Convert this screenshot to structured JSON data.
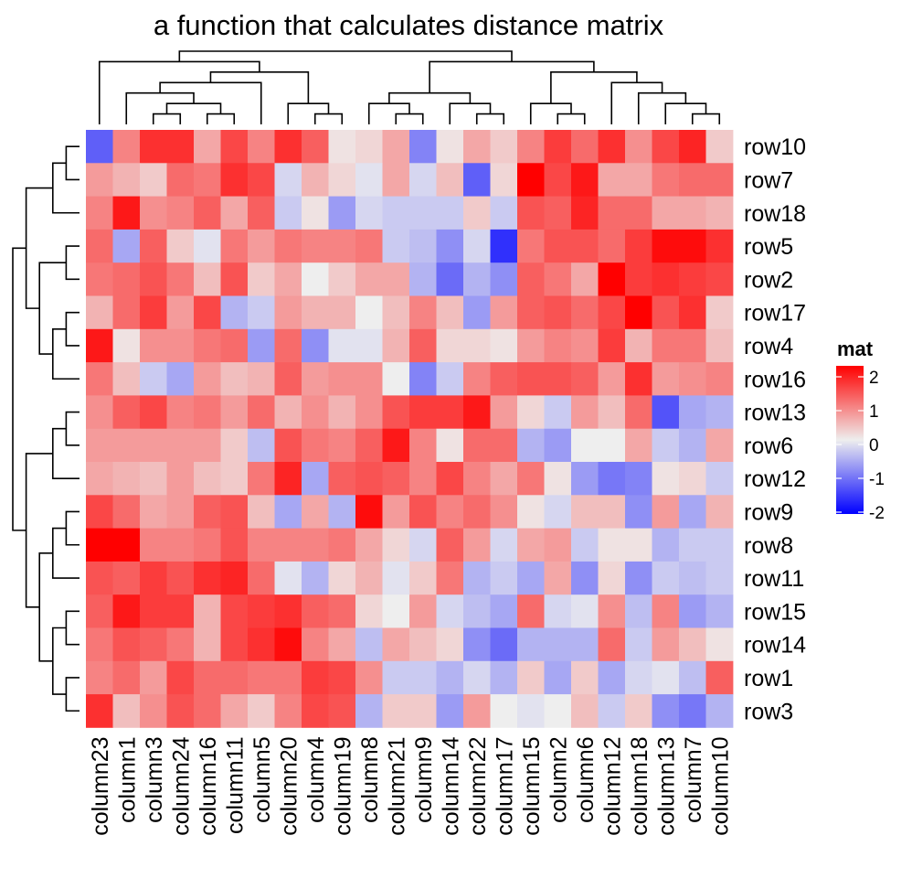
{
  "chart_data": {
    "type": "heatmap",
    "title": "a function that calculates distance matrix",
    "columns": [
      "column23",
      "column1",
      "column3",
      "column24",
      "column16",
      "column11",
      "column5",
      "column20",
      "column4",
      "column19",
      "column8",
      "column21",
      "column9",
      "column14",
      "column22",
      "column17",
      "column15",
      "column2",
      "column6",
      "column12",
      "column18",
      "column13",
      "column7",
      "column10"
    ],
    "rows": [
      "row10",
      "row7",
      "row18",
      "row5",
      "row2",
      "row17",
      "row4",
      "row16",
      "row13",
      "row6",
      "row12",
      "row9",
      "row8",
      "row11",
      "row15",
      "row14",
      "row1",
      "row3"
    ],
    "values": [
      [
        -1.2,
        0.9,
        1.6,
        1.6,
        0.6,
        1.4,
        0.9,
        1.6,
        1.2,
        0.1,
        0.2,
        0.6,
        -0.9,
        0.1,
        0.6,
        0.3,
        0.9,
        1.5,
        1.1,
        1.6,
        0.8,
        1.4,
        1.7,
        0.3
      ],
      [
        0.7,
        0.5,
        0.3,
        1.1,
        1.0,
        1.6,
        1.4,
        -0.2,
        0.5,
        0.2,
        -0.1,
        0.6,
        -0.2,
        0.4,
        -1.2,
        0.2,
        2.0,
        1.4,
        1.8,
        0.6,
        0.6,
        1.0,
        1.1,
        1.1
      ],
      [
        0.9,
        1.8,
        0.8,
        0.9,
        1.2,
        0.6,
        1.2,
        -0.3,
        0.1,
        -0.7,
        -0.2,
        -0.3,
        -0.3,
        -0.3,
        0.3,
        -0.3,
        1.3,
        1.2,
        1.7,
        1.1,
        1.1,
        0.6,
        0.6,
        0.5
      ],
      [
        1.1,
        -0.6,
        1.2,
        0.3,
        -0.1,
        1.0,
        0.7,
        1.0,
        0.9,
        0.9,
        1.0,
        -0.3,
        -0.4,
        -0.8,
        -0.2,
        -1.6,
        1.0,
        1.3,
        1.3,
        1.1,
        1.5,
        1.9,
        1.9,
        1.6
      ],
      [
        1.0,
        1.1,
        1.3,
        1.0,
        0.4,
        1.3,
        0.3,
        0.6,
        0.0,
        0.3,
        0.6,
        0.6,
        -0.5,
        -1.1,
        -0.5,
        -0.8,
        1.2,
        1.0,
        0.6,
        2.0,
        1.5,
        1.6,
        1.5,
        1.4
      ],
      [
        0.5,
        1.1,
        1.5,
        0.7,
        1.4,
        -0.5,
        -0.3,
        0.7,
        0.5,
        0.5,
        0.0,
        0.4,
        0.9,
        0.4,
        -0.7,
        0.7,
        1.2,
        1.3,
        1.1,
        1.4,
        2.1,
        1.3,
        1.6,
        0.3
      ],
      [
        1.8,
        0.1,
        0.8,
        0.8,
        1.0,
        1.1,
        -0.7,
        1.1,
        -0.8,
        -0.1,
        -0.1,
        0.5,
        1.2,
        0.2,
        0.2,
        0.1,
        0.7,
        0.9,
        0.8,
        1.5,
        0.5,
        1.0,
        1.0,
        0.4
      ],
      [
        1.0,
        0.4,
        -0.3,
        -0.6,
        0.7,
        0.4,
        0.5,
        1.2,
        0.7,
        0.8,
        0.8,
        0.0,
        -0.9,
        -0.3,
        0.9,
        1.2,
        1.3,
        1.3,
        1.2,
        0.7,
        1.6,
        0.7,
        0.8,
        0.9
      ],
      [
        0.8,
        1.2,
        1.4,
        0.9,
        1.0,
        0.7,
        1.1,
        0.5,
        0.8,
        0.5,
        0.8,
        1.3,
        1.5,
        1.5,
        1.8,
        0.7,
        0.2,
        -0.3,
        0.7,
        0.4,
        1.1,
        -1.3,
        -0.6,
        -0.5
      ],
      [
        0.7,
        0.7,
        0.7,
        0.7,
        0.7,
        0.3,
        -0.4,
        1.3,
        1.0,
        0.9,
        1.2,
        1.8,
        0.9,
        0.1,
        1.1,
        1.1,
        -0.5,
        -0.7,
        0.0,
        0.0,
        0.6,
        -0.3,
        -0.5,
        0.6
      ],
      [
        0.6,
        0.5,
        0.4,
        0.7,
        0.4,
        0.3,
        1.0,
        1.7,
        -0.6,
        1.2,
        1.3,
        1.2,
        0.9,
        1.4,
        0.9,
        0.6,
        1.0,
        0.1,
        -0.7,
        -1.0,
        -0.9,
        0.1,
        0.2,
        -0.3
      ],
      [
        1.4,
        1.1,
        0.6,
        0.7,
        1.2,
        1.3,
        0.4,
        -0.6,
        0.6,
        -0.5,
        1.9,
        0.7,
        1.3,
        0.9,
        1.1,
        0.8,
        0.1,
        -0.2,
        0.4,
        0.4,
        -0.8,
        0.7,
        -0.6,
        0.5
      ],
      [
        2.0,
        2.1,
        0.9,
        0.9,
        1.0,
        1.3,
        0.9,
        0.9,
        0.9,
        1.0,
        0.6,
        0.2,
        -0.2,
        1.2,
        0.7,
        -0.2,
        0.6,
        0.7,
        -0.3,
        0.1,
        0.1,
        -0.5,
        -0.3,
        -0.3
      ],
      [
        1.3,
        1.2,
        1.5,
        1.3,
        1.6,
        1.7,
        1.1,
        -0.1,
        -0.5,
        0.2,
        0.5,
        -0.1,
        0.3,
        1.0,
        -0.5,
        -0.3,
        -0.6,
        0.6,
        -0.8,
        0.2,
        -0.8,
        -0.3,
        -0.4,
        -0.3
      ],
      [
        1.2,
        1.8,
        1.5,
        1.5,
        0.5,
        1.4,
        1.5,
        1.6,
        1.2,
        1.1,
        0.2,
        0.0,
        0.7,
        -0.2,
        -0.4,
        -0.6,
        1.1,
        -0.2,
        -0.1,
        0.8,
        -0.4,
        0.9,
        -0.7,
        -0.5
      ],
      [
        1.0,
        1.3,
        1.2,
        1.0,
        0.5,
        1.4,
        1.6,
        1.9,
        0.9,
        0.6,
        -0.4,
        0.6,
        0.4,
        0.2,
        -0.8,
        -1.1,
        -0.5,
        -0.5,
        -0.5,
        1.1,
        -0.3,
        0.7,
        0.4,
        0.1
      ],
      [
        0.9,
        1.1,
        0.7,
        1.4,
        1.1,
        1.1,
        1.0,
        1.0,
        1.5,
        1.4,
        0.8,
        -0.3,
        -0.3,
        -0.5,
        -0.2,
        -0.5,
        0.3,
        -0.6,
        0.3,
        -0.6,
        -0.2,
        -0.1,
        -0.4,
        1.2
      ],
      [
        1.6,
        0.4,
        0.8,
        1.3,
        1.1,
        0.6,
        0.3,
        0.9,
        1.4,
        1.3,
        -0.5,
        0.3,
        0.3,
        -0.7,
        0.7,
        0.0,
        -0.1,
        0.0,
        0.4,
        -0.3,
        0.3,
        -0.8,
        -1.0,
        -0.5
      ]
    ],
    "legend": {
      "title": "mat",
      "ticks": [
        {
          "v": 2,
          "label": "2"
        },
        {
          "v": 1,
          "label": "1"
        },
        {
          "v": 0,
          "label": "0"
        },
        {
          "v": -1,
          "label": "-1"
        },
        {
          "v": -2,
          "label": "-2"
        }
      ],
      "range": [
        -2,
        2
      ]
    },
    "color_scale": {
      "low": "#0000FF",
      "mid": "#EEEEEE",
      "high": "#FF0000"
    },
    "row_dendrogram": [
      [
        "row10",
        "row7"
      ],
      [
        0,
        "row18"
      ],
      [
        "row5",
        "row2"
      ],
      [
        "row17",
        "row4"
      ],
      [
        3,
        "row16"
      ],
      [
        2,
        4
      ],
      [
        1,
        5
      ],
      [
        "row13",
        "row6"
      ],
      [
        7,
        "row12"
      ],
      [
        "row9",
        "row8"
      ],
      [
        9,
        "row11"
      ],
      [
        "row15",
        "row14"
      ],
      [
        "row1",
        "row3"
      ],
      [
        11,
        12
      ],
      [
        10,
        13
      ],
      [
        8,
        14
      ],
      [
        6,
        15
      ]
    ],
    "column_dendrogram": [
      [
        "column3",
        "column24"
      ],
      [
        "column16",
        "column11"
      ],
      [
        0,
        1
      ],
      [
        "column1",
        2
      ],
      [
        3,
        "column5"
      ],
      [
        "column4",
        "column19"
      ],
      [
        "column20",
        5
      ],
      [
        4,
        6
      ],
      [
        "column23",
        7
      ],
      [
        "column21",
        "column9"
      ],
      [
        "column8",
        9
      ],
      [
        "column22",
        "column17"
      ],
      [
        "column14",
        11
      ],
      [
        10,
        12
      ],
      [
        "column2",
        "column6"
      ],
      [
        "column15",
        14
      ],
      [
        "column7",
        "column10"
      ],
      [
        "column13",
        16
      ],
      [
        "column18",
        17
      ],
      [
        "column12",
        18
      ],
      [
        15,
        19
      ],
      [
        13,
        20
      ],
      [
        8,
        21
      ]
    ]
  }
}
